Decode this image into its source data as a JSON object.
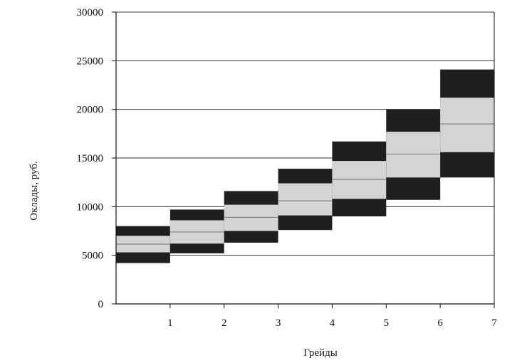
{
  "chart_data": {
    "type": "bar",
    "subtype": "salary-grade-ranges",
    "xlabel": "Грейды",
    "ylabel": "Оклады, руб.",
    "ylim": [
      0,
      30000
    ],
    "yticks": [
      0,
      5000,
      10000,
      15000,
      20000,
      25000,
      30000
    ],
    "xlim": [
      0,
      7
    ],
    "xticks": [
      1,
      2,
      3,
      4,
      5,
      6,
      7
    ],
    "grid": "horizontal",
    "colors": {
      "outer": "#1f1f1f",
      "inner": "#d4d4d4",
      "median_line": "#8a8a8a",
      "grid": "#333333"
    },
    "grades": [
      {
        "x_start": 0,
        "x_end": 1,
        "min": 4200,
        "q1": 5300,
        "mid": 6150,
        "q3": 7000,
        "max": 8000
      },
      {
        "x_start": 1,
        "x_end": 2,
        "min": 5200,
        "q1": 6200,
        "mid": 7400,
        "q3": 8600,
        "max": 9700
      },
      {
        "x_start": 2,
        "x_end": 3,
        "min": 6300,
        "q1": 7500,
        "mid": 8900,
        "q3": 10200,
        "max": 11600
      },
      {
        "x_start": 3,
        "x_end": 4,
        "min": 7600,
        "q1": 9100,
        "mid": 10600,
        "q3": 12400,
        "max": 13900
      },
      {
        "x_start": 4,
        "x_end": 5,
        "min": 9000,
        "q1": 10800,
        "mid": 12800,
        "q3": 14700,
        "max": 16700
      },
      {
        "x_start": 5,
        "x_end": 6,
        "min": 10700,
        "q1": 13000,
        "mid": 15400,
        "q3": 17700,
        "max": 20000
      },
      {
        "x_start": 6,
        "x_end": 7,
        "min": 13000,
        "q1": 15600,
        "mid": 18500,
        "q3": 21200,
        "max": 24100
      }
    ]
  }
}
